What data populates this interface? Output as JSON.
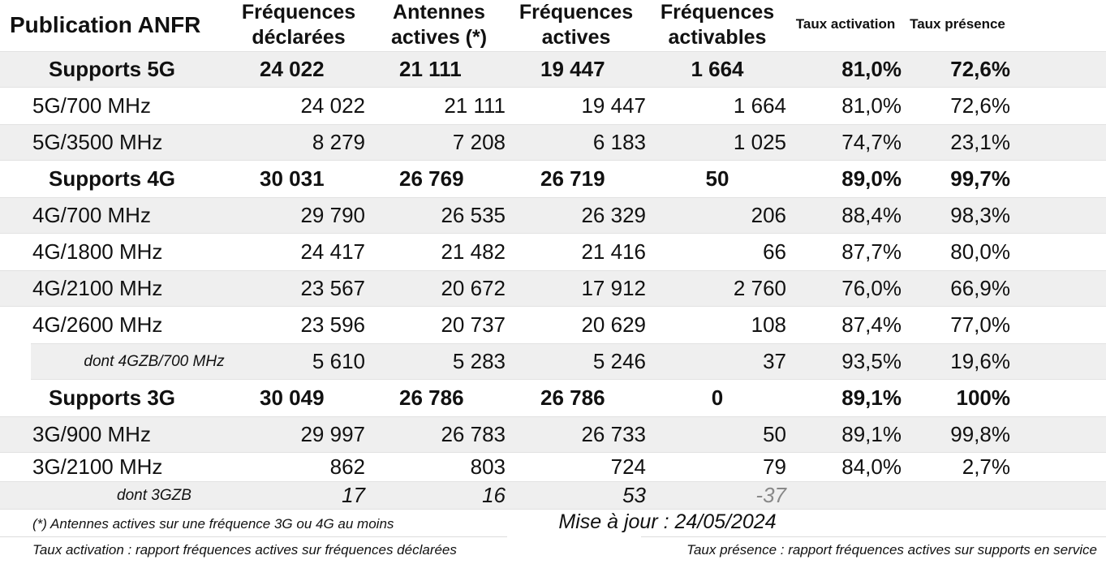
{
  "title": "Publication ANFR",
  "headers": [
    "Fréquences déclarées",
    "Antennes actives (*)",
    "Fréquences actives",
    "Fréquences activables",
    "Taux activation",
    "Taux présence"
  ],
  "groups": [
    {
      "label": "Supports 5G",
      "values": [
        "24 022",
        "21 111",
        "19 447",
        "1 664",
        "81,0%",
        "72,6%"
      ],
      "rows": [
        {
          "label": "5G/700 MHz",
          "values": [
            "24 022",
            "21 111",
            "19 447",
            "1 664",
            "81,0%",
            "72,6%"
          ]
        },
        {
          "label": "5G/3500 MHz",
          "values": [
            "8 279",
            "7 208",
            "6 183",
            "1 025",
            "74,7%",
            "23,1%"
          ]
        }
      ]
    },
    {
      "label": "Supports 4G",
      "values": [
        "30 031",
        "26 769",
        "26 719",
        "50",
        "89,0%",
        "99,7%"
      ],
      "rows": [
        {
          "label": "4G/700 MHz",
          "values": [
            "29 790",
            "26 535",
            "26 329",
            "206",
            "88,4%",
            "98,3%"
          ]
        },
        {
          "label": "4G/1800 MHz",
          "values": [
            "24 417",
            "21 482",
            "21 416",
            "66",
            "87,7%",
            "80,0%"
          ]
        },
        {
          "label": "4G/2100 MHz",
          "values": [
            "23 567",
            "20 672",
            "17 912",
            "2 760",
            "76,0%",
            "66,9%"
          ]
        },
        {
          "label": "4G/2600 MHz",
          "values": [
            "23 596",
            "20 737",
            "20 629",
            "108",
            "87,4%",
            "77,0%"
          ],
          "sub_rows": [
            {
              "label": "dont 4GZB/700 MHz",
              "values": [
                "5 610",
                "5 283",
                "5 246",
                "37",
                "93,5%",
                "19,6%"
              ]
            }
          ]
        }
      ]
    },
    {
      "label": "Supports 3G",
      "values": [
        "30 049",
        "26 786",
        "26 786",
        "0",
        "89,1%",
        "100%"
      ],
      "rows": [
        {
          "label": "3G/900 MHz",
          "values": [
            "29 997",
            "26 783",
            "26 733",
            "50",
            "89,1%",
            "99,8%"
          ]
        },
        {
          "label": "3G/2100 MHz",
          "values": [
            "862",
            "803",
            "724",
            "79",
            "84,0%",
            "2,7%"
          ],
          "sub_rows": [
            {
              "label": "dont 3GZB",
              "values": [
                "17",
                "16",
                "53",
                "-37"
              ]
            }
          ]
        }
      ]
    }
  ],
  "footnotes": {
    "antennes": "(*) Antennes actives sur une fréquence 3G ou 4G au moins",
    "update": "Mise à jour : 24/05/2024",
    "activation": "Taux activation : rapport fréquences actives sur fréquences déclarées",
    "presence": "Taux présence : rapport fréquences actives sur supports en service"
  }
}
